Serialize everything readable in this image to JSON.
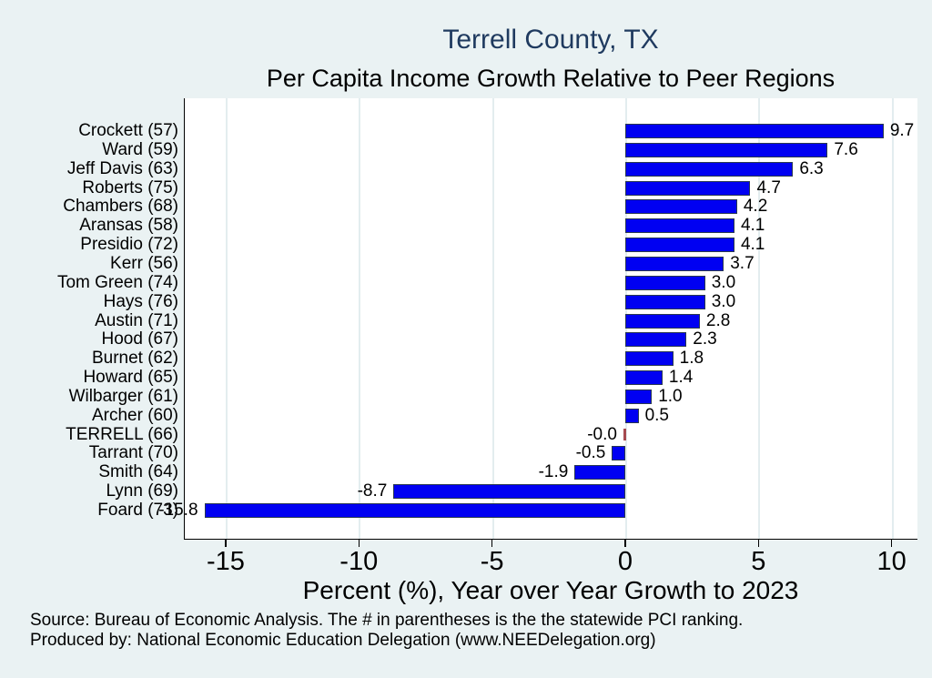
{
  "title": "Terrell County, TX",
  "subtitle": "Per Capita Income Growth Relative to Peer Regions",
  "source": {
    "line1": "Source: Bureau of Economic Analysis. The # in parentheses is the the statewide PCI ranking.",
    "line2": "Produced by: National Economic Education Delegation (www.NEEDelegation.org)"
  },
  "colors": {
    "background": "#EAF2F3",
    "plot_background": "#FFFFFF",
    "title_navy": "#1F3A5F",
    "bar_blue": "#0000F2",
    "bar_border": "#2A3950",
    "terrell_red": "#A64A50",
    "gridline": "#E3EDEF",
    "axis_black": "#000000"
  },
  "chart_data": {
    "type": "bar",
    "orientation": "horizontal",
    "title": "Terrell County, TX",
    "subtitle": "Per Capita Income Growth Relative to Peer Regions",
    "xlabel": "Percent (%), Year over Year Growth to 2023",
    "ylabel": "",
    "xlim": [
      -16.57,
      10.97
    ],
    "x_ticks": [
      -15,
      -10,
      -5,
      0,
      5,
      10
    ],
    "grid": true,
    "legend": false,
    "categories": [
      "Crockett (57)",
      "Ward (59)",
      "Jeff Davis (63)",
      "Roberts (75)",
      "Chambers (68)",
      "Aransas (58)",
      "Presidio (72)",
      "Kerr (56)",
      "Tom Green (74)",
      "Hays (76)",
      "Austin (71)",
      "Hood (67)",
      "Burnet (62)",
      "Howard (65)",
      "Wilbarger (61)",
      "Archer (60)",
      "TERRELL (66)",
      "Tarrant (70)",
      "Smith (64)",
      "Lynn (69)",
      "Foard (73)"
    ],
    "values": [
      9.7,
      7.6,
      6.3,
      4.7,
      4.2,
      4.1,
      4.1,
      3.7,
      3.0,
      3.0,
      2.8,
      2.3,
      1.8,
      1.4,
      1.0,
      0.5,
      -0.0,
      -0.5,
      -1.9,
      -8.7,
      -15.8
    ],
    "value_labels": [
      "9.7",
      "7.6",
      "6.3",
      "4.7",
      "4.2",
      "4.1",
      "4.1",
      "3.7",
      "3.0",
      "3.0",
      "2.8",
      "2.3",
      "1.8",
      "1.4",
      "1.0",
      "0.5",
      "-0.0",
      "-0.5",
      "-1.9",
      "-8.7",
      "-15.8"
    ],
    "highlight_category": "TERRELL (66)",
    "highlight_color": "#A64A50",
    "bar_color": "#0000F2"
  }
}
